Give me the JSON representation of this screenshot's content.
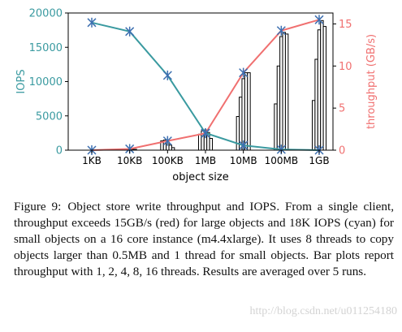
{
  "chart_data": {
    "type": "bar+line",
    "xlabel": "object size",
    "categories": [
      "1KB",
      "10KB",
      "100KB",
      "1MB",
      "10MB",
      "100MB",
      "1GB"
    ],
    "y_left": {
      "label": "IOPS",
      "color": "#3a9aa0",
      "ticks": [
        0,
        5000,
        10000,
        15000,
        20000
      ],
      "tick_labels": [
        "0",
        "5000",
        "10000",
        "15000",
        "20000"
      ],
      "ylim": [
        0,
        20000
      ]
    },
    "y_right": {
      "label": "throughput (GB/s)",
      "color": "#f07070",
      "ticks": [
        0,
        5,
        10,
        15
      ],
      "tick_labels": [
        "0",
        "5",
        "10",
        "15"
      ],
      "ylim": [
        0,
        16.3
      ]
    },
    "iops_series": {
      "color": "#3a9aa0",
      "values": [
        18600,
        17300,
        10900,
        2500,
        700,
        100,
        0
      ]
    },
    "throughput_series": {
      "color": "#f07070",
      "values": [
        0.0,
        0.15,
        1.1,
        2.0,
        9.2,
        14.2,
        15.5
      ]
    },
    "bar_series": {
      "threads": [
        1,
        2,
        4,
        8,
        16
      ],
      "values": [
        [
          0.0,
          0.0,
          0.0,
          0.0,
          0.0
        ],
        [
          0.05,
          0.1,
          0.1,
          0.1,
          0.1
        ],
        [
          1.1,
          1.2,
          1.0,
          0.6,
          0.3
        ],
        [
          1.9,
          2.3,
          2.4,
          2.1,
          1.4
        ],
        [
          4.0,
          6.3,
          8.5,
          9.2,
          9.2
        ],
        [
          5.5,
          10.0,
          13.5,
          14.0,
          13.8
        ],
        [
          5.9,
          10.8,
          14.3,
          15.4,
          14.7
        ]
      ]
    }
  },
  "caption": {
    "label": "Figure 9:",
    "text": "Object store write throughput and IOPS. From a single client, throughput exceeds 15GB/s (red) for large objects and 18K IOPS (cyan) for small objects on a 16 core instance (m4.4xlarge). It uses 8 threads to copy objects larger than 0.5MB and 1 thread for small objects. Bar plots report throughput with 1, 2, 4, 8, 16 threads. Results are averaged over 5 runs."
  },
  "watermark": "http://blog.csdn.net/u011254180"
}
